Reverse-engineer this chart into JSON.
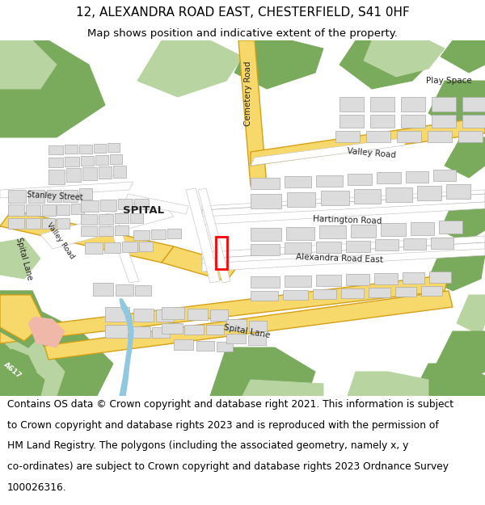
{
  "title_line1": "12, ALEXANDRA ROAD EAST, CHESTERFIELD, S41 0HF",
  "title_line2": "Map shows position and indicative extent of the property.",
  "footer_lines": [
    "Contains OS data © Crown copyright and database right 2021. This information is subject",
    "to Crown copyright and database rights 2023 and is reproduced with the permission of",
    "HM Land Registry. The polygons (including the associated geometry, namely x, y",
    "co-ordinates) are subject to Crown copyright and database rights 2023 Ordnance Survey",
    "100026316."
  ],
  "map_bg": "#f0ece4",
  "road_fill": "#ffffff",
  "road_edge": "#c8c8c8",
  "yellow_fill": "#f7d96b",
  "yellow_edge": "#d4a017",
  "green_dark": "#7aaa5c",
  "green_light": "#b8d4a0",
  "building_fill": "#dcdcdc",
  "building_edge": "#aaaaaa",
  "highlight_color": "#ff0000",
  "water_color": "#90c8e0",
  "pink_color": "#f0b8a8",
  "text_color": "#222222",
  "label_fontsize": 7.5,
  "title_fontsize1": 11.0,
  "title_fontsize2": 9.5,
  "footer_fontsize": 8.8
}
